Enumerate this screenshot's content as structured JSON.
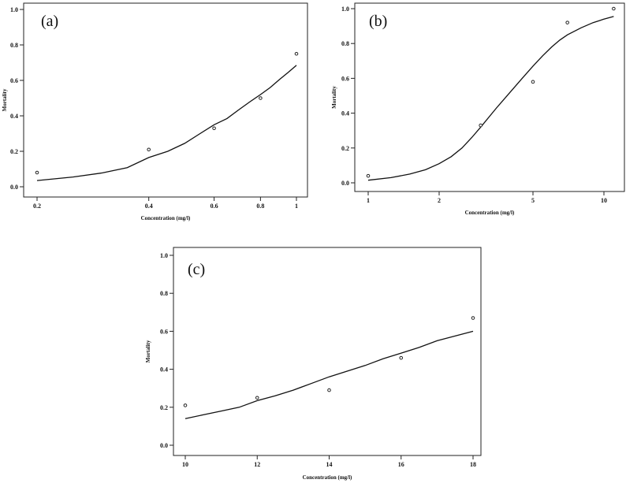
{
  "chart_data": [
    {
      "type": "scatter",
      "panel_label": "(a)",
      "xlabel": "Concentration (mg/l)",
      "ylabel": "Mortality",
      "xscale": "log",
      "xticks": [
        0.2,
        0.4,
        0.6,
        0.8,
        1
      ],
      "xtick_labels": [
        "0.2",
        "0.4",
        "0.6",
        "0.8",
        "1"
      ],
      "yticks": [
        0,
        0.2,
        0.4,
        0.6,
        0.8,
        1
      ],
      "ytick_labels": [
        "0.0",
        "0.2",
        "0.4",
        "0.6",
        "0.8",
        "1.0"
      ],
      "ylim": [
        -0.02,
        1.02
      ],
      "x": [
        0.2,
        0.4,
        0.6,
        0.8,
        1.0
      ],
      "y": [
        0.08,
        0.21,
        0.33,
        0.5,
        0.75
      ],
      "fit_curve": {
        "x": [
          0.2,
          0.25,
          0.3,
          0.35,
          0.4,
          0.45,
          0.5,
          0.55,
          0.6,
          0.65,
          0.7,
          0.75,
          0.8,
          0.85,
          0.9,
          0.95,
          1.0
        ],
        "y": [
          0.035,
          0.055,
          0.078,
          0.108,
          0.165,
          0.2,
          0.245,
          0.3,
          0.35,
          0.385,
          0.435,
          0.48,
          0.52,
          0.56,
          0.605,
          0.645,
          0.685
        ]
      }
    },
    {
      "type": "scatter",
      "panel_label": "(b)",
      "xlabel": "Concentration (mg/l)",
      "ylabel": "Mortality",
      "xscale": "log",
      "xticks": [
        1,
        2,
        5,
        10
      ],
      "xtick_labels": [
        "1",
        "2",
        "5",
        "10"
      ],
      "yticks": [
        0,
        0.2,
        0.4,
        0.6,
        0.8,
        1
      ],
      "ytick_labels": [
        "0.0",
        "0.2",
        "0.4",
        "0.6",
        "0.8",
        "1.0"
      ],
      "ylim": [
        -0.02,
        1.02
      ],
      "x": [
        1.0,
        3.0,
        5.0,
        7.0,
        11.0
      ],
      "y": [
        0.04,
        0.33,
        0.58,
        0.92,
        1.0
      ],
      "fit_curve": {
        "x": [
          1.0,
          1.25,
          1.5,
          1.75,
          2.0,
          2.25,
          2.5,
          2.75,
          3.0,
          3.5,
          4.0,
          4.5,
          5.0,
          5.5,
          6.0,
          6.5,
          7.0,
          8.0,
          9.0,
          10.0,
          11.0
        ],
        "y": [
          0.015,
          0.03,
          0.05,
          0.075,
          0.11,
          0.15,
          0.2,
          0.26,
          0.32,
          0.43,
          0.52,
          0.6,
          0.67,
          0.73,
          0.78,
          0.82,
          0.85,
          0.89,
          0.92,
          0.94,
          0.955
        ]
      }
    },
    {
      "type": "scatter",
      "panel_label": "(c)",
      "xlabel": "Concentration (mg/l)",
      "ylabel": "Mortality",
      "xscale": "linear",
      "xlim": [
        9.6,
        18.4
      ],
      "xticks": [
        10,
        12,
        14,
        16,
        18
      ],
      "xtick_labels": [
        "10",
        "12",
        "14",
        "16",
        "18"
      ],
      "yticks": [
        0,
        0.2,
        0.4,
        0.6,
        0.8,
        1
      ],
      "ytick_labels": [
        "0.0",
        "0.2",
        "0.4",
        "0.6",
        "0.8",
        "1.0"
      ],
      "ylim": [
        -0.04,
        1.04
      ],
      "x": [
        10,
        12,
        14,
        16,
        18
      ],
      "y": [
        0.21,
        0.25,
        0.29,
        0.46,
        0.67
      ],
      "fit_curve": {
        "x": [
          10,
          10.5,
          11,
          11.5,
          12,
          12.5,
          13,
          13.5,
          14,
          14.5,
          15,
          15.5,
          16,
          16.5,
          17,
          17.5,
          18
        ],
        "y": [
          0.14,
          0.16,
          0.18,
          0.2,
          0.235,
          0.26,
          0.29,
          0.325,
          0.36,
          0.39,
          0.42,
          0.455,
          0.485,
          0.515,
          0.55,
          0.575,
          0.6
        ]
      }
    }
  ]
}
